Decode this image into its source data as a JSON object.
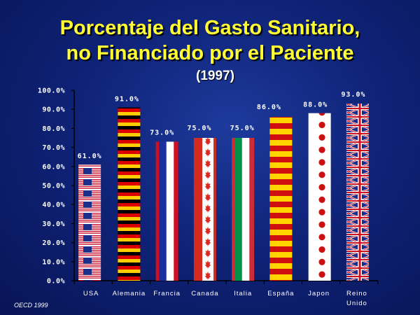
{
  "title_line1": "Porcentaje del Gasto Sanitario,",
  "title_line2": "no Financiado por el Paciente",
  "subtitle": "(1997)",
  "source": "OECD 1999",
  "colors": {
    "title": "#ffff33",
    "axis": "#000000",
    "label": "#ffffff",
    "plot_bg": "#ffffff"
  },
  "chart_data": {
    "type": "bar",
    "title": "Porcentaje del Gasto Sanitario, no Financiado por el Paciente",
    "subtitle": "(1997)",
    "categories": [
      "USA",
      "Alemania",
      "Francia",
      "Canada",
      "Italia",
      "España",
      "Japon",
      "Reino Unido"
    ],
    "category_lines": [
      [
        "USA"
      ],
      [
        "Alemania"
      ],
      [
        "Francia"
      ],
      [
        "Canada"
      ],
      [
        "Italia"
      ],
      [
        "España"
      ],
      [
        "Japon"
      ],
      [
        "Reino",
        "Unido"
      ]
    ],
    "values": [
      61.0,
      91.0,
      73.0,
      75.0,
      75.0,
      86.0,
      88.0,
      93.0
    ],
    "value_labels": [
      "61.0%",
      "91.0%",
      "73.0%",
      "75.0%",
      "75.0%",
      "86.0%",
      "88.0%",
      "93.0%"
    ],
    "bar_patterns": [
      "usa-flag",
      "germany-flag",
      "france-flag",
      "canada-flag",
      "italy-flag",
      "spain-flag",
      "japan-flag",
      "uk-flag"
    ],
    "ylim": [
      0,
      100
    ],
    "yticks": [
      0,
      10,
      20,
      30,
      40,
      50,
      60,
      70,
      80,
      90,
      100
    ],
    "ytick_labels": [
      "0.0%",
      "10.0%",
      "20.0%",
      "30.0%",
      "40.0%",
      "50.0%",
      "60.0%",
      "70.0%",
      "80.0%",
      "90.0%",
      "100.0%"
    ],
    "grid": false,
    "legend": "none"
  }
}
